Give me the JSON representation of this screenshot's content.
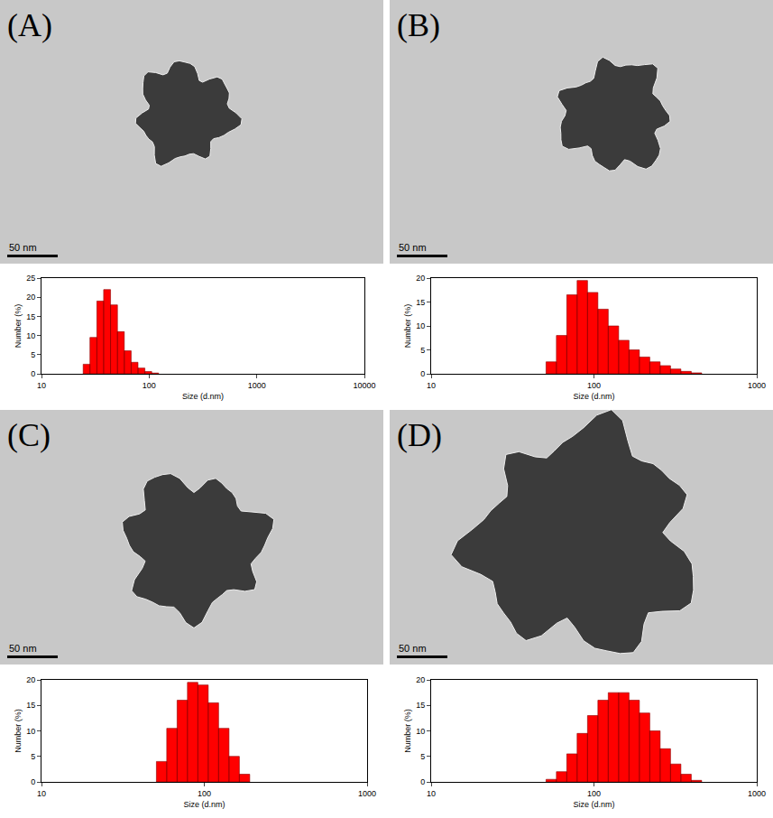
{
  "chart_data": [
    {
      "type": "histogram",
      "title": "(A)",
      "annotations": [
        "50 nm"
      ],
      "x_label": "Size (d.nm)",
      "y_label": "Number (%)",
      "bins": [
        24.4,
        28.2,
        32.7,
        37.8,
        43.8,
        50.8,
        58.8,
        68.1,
        78.8,
        91.3,
        105.7,
        122.4
      ],
      "values": [
        2.5,
        9.5,
        19,
        22,
        18,
        11,
        6,
        3,
        1.5,
        0.6,
        0.2
      ],
      "color": "#ff0000",
      "log": "x",
      "xlim": [
        10,
        10000
      ],
      "xticks": [
        10,
        100,
        1000,
        10000
      ],
      "ylim": [
        0,
        25
      ],
      "yticks": [
        0,
        5,
        10,
        15,
        20,
        25
      ],
      "grid": false
    },
    {
      "type": "histogram",
      "title": "(B)",
      "annotations": [
        "50 nm"
      ],
      "x_label": "Size (d.nm)",
      "y_label": "Number (%)",
      "bins": [
        50.8,
        58.8,
        68.1,
        78.8,
        91.3,
        105.7,
        122.4,
        141.8,
        164.2,
        190.1,
        220.2,
        255.0,
        295.3,
        342.0,
        396.1,
        458.7
      ],
      "values": [
        2.5,
        8,
        16.5,
        19.5,
        17,
        13.5,
        10,
        7,
        5,
        3.5,
        2.5,
        1.7,
        1,
        0.5,
        0.2
      ],
      "color": "#ff0000",
      "log": "x",
      "xlim": [
        10,
        1000
      ],
      "xticks": [
        10,
        100,
        1000
      ],
      "ylim": [
        0,
        20
      ],
      "yticks": [
        0,
        5,
        10,
        15,
        20
      ],
      "grid": false
    },
    {
      "type": "histogram",
      "title": "(C)",
      "annotations": [
        "50 nm"
      ],
      "x_label": "Size (d.nm)",
      "y_label": "Number (%)",
      "bins": [
        50.8,
        58.8,
        68.1,
        78.8,
        91.3,
        105.7,
        122.4,
        141.8,
        164.2,
        190.1
      ],
      "values": [
        4,
        10.5,
        16,
        19.5,
        19,
        15.5,
        10.5,
        5,
        1.5
      ],
      "color": "#ff0000",
      "log": "x",
      "xlim": [
        10,
        1000
      ],
      "xticks": [
        10,
        100,
        1000
      ],
      "ylim": [
        0,
        20
      ],
      "yticks": [
        0,
        5,
        10,
        15,
        20
      ],
      "grid": false
    },
    {
      "type": "histogram",
      "title": "(D)",
      "annotations": [
        "50 nm"
      ],
      "x_label": "Size (d.nm)",
      "y_label": "Number (%)",
      "bins": [
        50.8,
        58.8,
        68.1,
        78.8,
        91.3,
        105.7,
        122.4,
        141.8,
        164.2,
        190.1,
        220.2,
        255.0,
        295.3,
        342.0,
        396.1,
        458.7
      ],
      "values": [
        0.5,
        2,
        5.5,
        9.5,
        13,
        16,
        17.5,
        17.5,
        16,
        13.5,
        10,
        6.5,
        3.5,
        1.5,
        0.3
      ],
      "color": "#ff0000",
      "log": "x",
      "xlim": [
        10,
        1000
      ],
      "xticks": [
        10,
        100,
        1000
      ],
      "ylim": [
        0,
        20
      ],
      "yticks": [
        0,
        5,
        10,
        15,
        20
      ],
      "grid": false
    }
  ]
}
